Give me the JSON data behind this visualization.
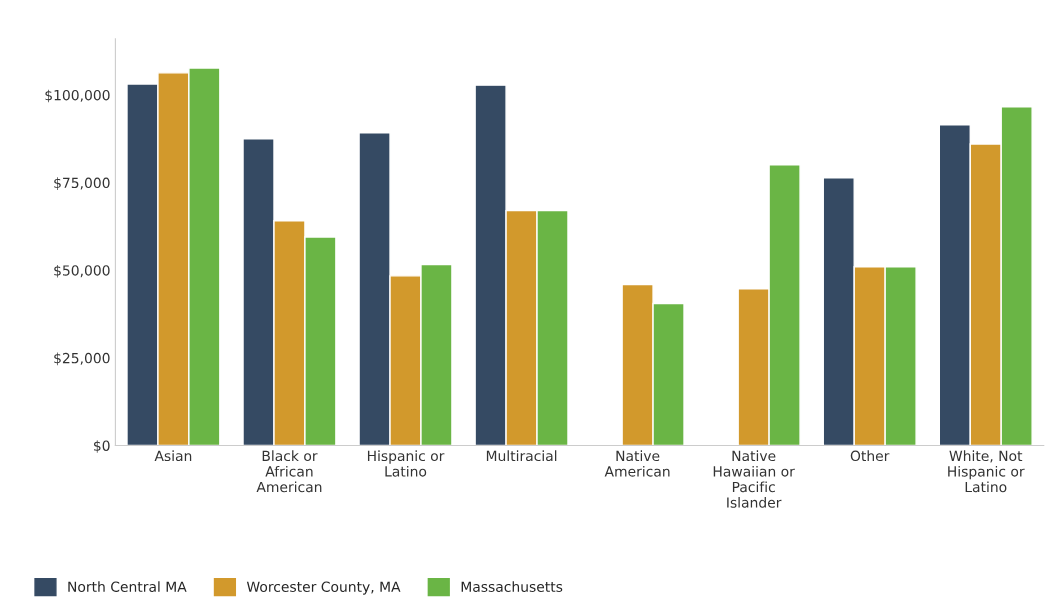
{
  "chart_data": {
    "type": "bar",
    "categories": [
      "Asian",
      "Black or\nAfrican\nAmerican",
      "Hispanic or\nLatino",
      "Multiracial",
      "Native\nAmerican",
      "Native\nHawaiian or\nPacific\nIslander",
      "Other",
      "White, Not\nHispanic or\nLatino"
    ],
    "series": [
      {
        "name": "North Central MA",
        "color": "#354a63",
        "values": [
          103100,
          87500,
          89200,
          102800,
          null,
          null,
          76400,
          91500
        ]
      },
      {
        "name": "Worcester County, MA",
        "color": "#d2992c",
        "values": [
          106300,
          64100,
          48400,
          67000,
          45900,
          44700,
          51000,
          86000
        ]
      },
      {
        "name": "Massachusetts",
        "color": "#6ab545",
        "values": [
          107700,
          59500,
          51600,
          67000,
          40500,
          80100,
          51000,
          96600
        ]
      }
    ],
    "ylim": [
      0,
      116000
    ],
    "yticks": [
      {
        "value": 0,
        "label": "$0"
      },
      {
        "value": 25000,
        "label": "$25,000"
      },
      {
        "value": 50000,
        "label": "$50,000"
      },
      {
        "value": 75000,
        "label": "$75,000"
      },
      {
        "value": 100000,
        "label": "$100,000"
      }
    ],
    "grid": false,
    "legend": "bottom left"
  }
}
